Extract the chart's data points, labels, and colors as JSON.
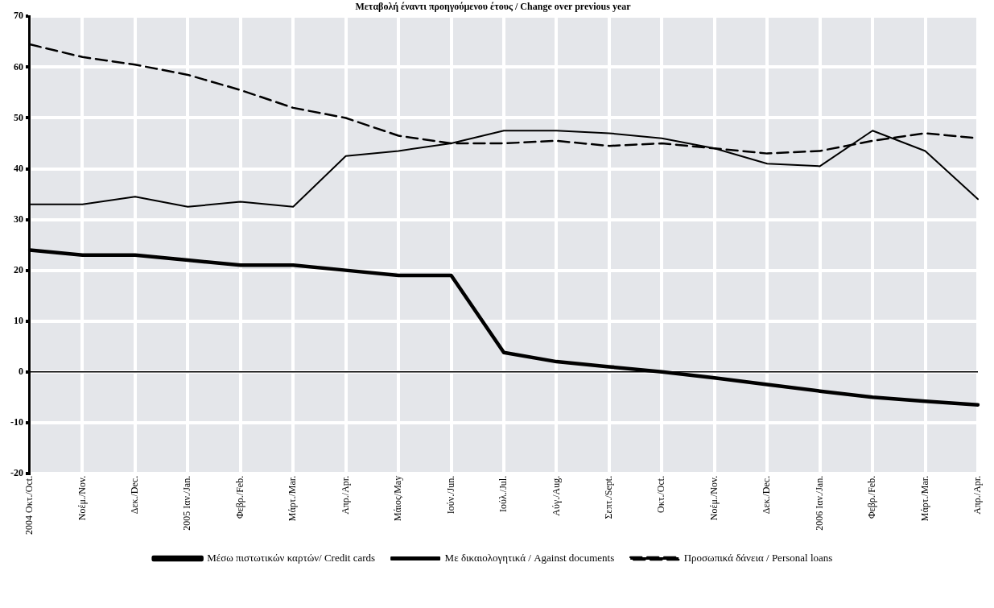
{
  "chart_data": {
    "type": "line",
    "title": "Μεταβολή έναντι προηγούμενου έτους / Change over previous year",
    "categories": [
      "2004 Οκτ./Oct.",
      "Νοέμ./Nov.",
      "Δεκ./Dec.",
      "2005 Ιαν./Jan.",
      "Φεβρ./Feb.",
      "Μάρτ./Mar.",
      "Απρ./Apr.",
      "Μάιος/May",
      "Ιούν./Jun.",
      "Ιούλ./Jul.",
      "Αύγ./Aug.",
      "Σεπτ./Sept.",
      "Οκτ./Oct.",
      "Νοέμ./Nov.",
      "Δεκ./Dec.",
      "2006 Ιαν./Jan.",
      "Φεβρ./Feb.",
      "Μάρτ./Mar.",
      "Απρ./Apr."
    ],
    "series": [
      {
        "name": "Μέσω πιστωτικών καρτών/ Credit cards",
        "color": "#000000",
        "line_style": "solid",
        "values": [
          24,
          23,
          23,
          22,
          21,
          21,
          20,
          19,
          19,
          3.8,
          2,
          1,
          0,
          -1.2,
          -2.5,
          -3.8,
          -5,
          -5.8,
          -6.5
        ]
      },
      {
        "name": "Με δικαιολογητικά / Against documents",
        "color": "#000000",
        "line_style": "solid",
        "values": [
          33,
          33,
          34.5,
          32.5,
          33.5,
          32.5,
          42.5,
          43.5,
          45,
          47.5,
          47.5,
          47,
          46,
          44,
          41,
          40.5,
          47.5,
          43.5,
          34
        ]
      },
      {
        "name": "Προσωπικά δάνεια / Personal loans",
        "color": "#000000",
        "line_style": "dashed",
        "values": [
          64.5,
          62,
          60.5,
          58.5,
          55.5,
          52,
          50,
          46.5,
          45,
          45,
          45.5,
          44.5,
          45,
          44,
          43,
          43.5,
          45.5,
          47,
          46
        ]
      }
    ],
    "ylim": [
      -20,
      70
    ],
    "yticks": [
      -20,
      -10,
      0,
      10,
      20,
      30,
      40,
      50,
      60,
      70
    ],
    "ref_lines": [
      {
        "axis": "y",
        "value": 0,
        "color": "#000000"
      }
    ],
    "grid": true,
    "legend": "bottom",
    "marker": "none"
  }
}
